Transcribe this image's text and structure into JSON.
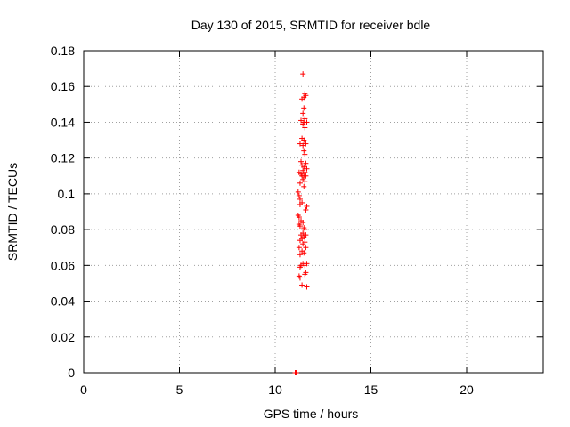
{
  "chart_data": {
    "type": "scatter",
    "title": "Day 130 of 2015, SRMTID for receiver bdle",
    "xlabel": "GPS time / hours",
    "ylabel": "SRMTID / TECUs",
    "xlim": [
      0,
      24
    ],
    "ylim": [
      0,
      0.18
    ],
    "xticks": [
      0,
      5,
      10,
      15,
      20
    ],
    "yticks": [
      0,
      0.02,
      0.04,
      0.06,
      0.08,
      0.1,
      0.12,
      0.14,
      0.16,
      0.18
    ],
    "xtick_labels": [
      "0",
      "5",
      "10",
      "15",
      "20"
    ],
    "ytick_labels": [
      "0",
      "0.02",
      "0.04",
      "0.06",
      "0.08",
      "0.1",
      "0.12",
      "0.14",
      "0.16",
      "0.18"
    ],
    "grid": true,
    "marker": "+",
    "color": "#ff0000",
    "series": [
      {
        "x": [
          11.45,
          11.55,
          11.5,
          11.4,
          11.6,
          11.5,
          11.45,
          11.55,
          11.35,
          11.5,
          11.65,
          11.45,
          11.55,
          11.4,
          11.5,
          11.6,
          11.3,
          11.45,
          11.5,
          11.55,
          11.35,
          11.6,
          11.4,
          11.5,
          11.65,
          11.45,
          11.55,
          11.25,
          11.35,
          11.5,
          11.6,
          11.4,
          11.45,
          11.55,
          11.3,
          11.5,
          11.2,
          11.25,
          11.3,
          11.4,
          11.3,
          11.2,
          11.25,
          11.35,
          11.65,
          11.6,
          11.45,
          11.25,
          11.3,
          11.5,
          11.55,
          11.45,
          11.6,
          11.35,
          11.5,
          11.4,
          11.3,
          11.55,
          11.45,
          11.25,
          11.6,
          11.4,
          11.5,
          11.3,
          11.65,
          11.45,
          11.55,
          11.35,
          11.3,
          11.6,
          11.55,
          11.25,
          11.3,
          11.4,
          11.65,
          11.05,
          11.1,
          11.05,
          11.1
        ],
        "y": [
          0.167,
          0.156,
          0.154,
          0.153,
          0.155,
          0.148,
          0.145,
          0.142,
          0.141,
          0.14,
          0.14,
          0.139,
          0.137,
          0.131,
          0.13,
          0.128,
          0.128,
          0.127,
          0.124,
          0.122,
          0.118,
          0.117,
          0.116,
          0.115,
          0.114,
          0.113,
          0.112,
          0.112,
          0.111,
          0.11,
          0.11,
          0.11,
          0.108,
          0.107,
          0.106,
          0.104,
          0.101,
          0.099,
          0.097,
          0.095,
          0.094,
          0.088,
          0.087,
          0.085,
          0.093,
          0.091,
          0.084,
          0.083,
          0.082,
          0.081,
          0.08,
          0.078,
          0.077,
          0.077,
          0.076,
          0.075,
          0.074,
          0.073,
          0.072,
          0.07,
          0.07,
          0.068,
          0.067,
          0.066,
          0.061,
          0.061,
          0.06,
          0.06,
          0.059,
          0.056,
          0.055,
          0.054,
          0.053,
          0.049,
          0.048,
          0.0,
          0.0,
          0.0,
          0.0
        ]
      }
    ]
  }
}
